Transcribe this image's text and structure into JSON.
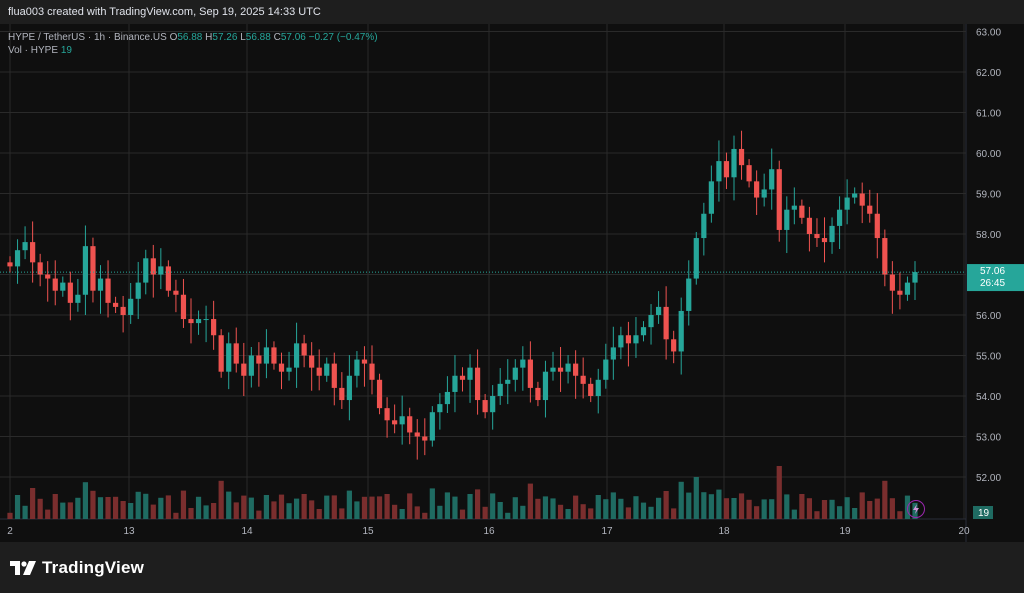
{
  "header": {
    "credit": "flua003 created with TradingView.com, Sep 19, 2025 14:33 UTC"
  },
  "legend": {
    "symbol": "HYPE / TetherUS · 1h · Binance.US",
    "o_label": "O",
    "o": "56.88",
    "h_label": "H",
    "h": "57.26",
    "l_label": "L",
    "l": "56.88",
    "c_label": "C",
    "c": "57.06",
    "change": "−0.27 (−0.47%)",
    "vol_label": "Vol · HYPE",
    "vol_value": "19"
  },
  "price_tag": {
    "price": "57.06",
    "countdown": "26:45"
  },
  "volume_tag": "19",
  "brand": {
    "name": "TradingView"
  },
  "colors": {
    "up": "#26a69a",
    "down": "#ef5350",
    "up_vol": "#1f6b62",
    "down_vol": "#7a2e2e",
    "bg": "#0f0f0f",
    "grid": "#2a2a2a",
    "text": "#d1d4dc"
  },
  "chart_data": {
    "type": "candlestick",
    "symbol": "HYPE / TetherUS",
    "interval": "1h",
    "y_ticks": [
      "63.00",
      "62.00",
      "61.00",
      "60.00",
      "59.00",
      "58.00",
      "57.00",
      "56.00",
      "55.00",
      "54.00",
      "53.00",
      "52.00"
    ],
    "x_ticks": [
      "2",
      "13",
      "14",
      "15",
      "16",
      "17",
      "18",
      "19",
      "20"
    ],
    "ylim": [
      51.0,
      63.3
    ],
    "current_price": 57.06,
    "candles_close": [
      57.2,
      57.6,
      57.8,
      57.3,
      57.0,
      56.9,
      56.6,
      56.8,
      56.3,
      56.5,
      57.7,
      56.6,
      56.9,
      56.3,
      56.2,
      56.0,
      56.4,
      56.8,
      57.4,
      57.0,
      57.2,
      56.6,
      56.5,
      55.9,
      55.8,
      55.9,
      55.9,
      55.5,
      54.6,
      55.3,
      54.8,
      54.5,
      55.0,
      54.8,
      55.2,
      54.8,
      54.6,
      54.7,
      55.3,
      55.0,
      54.7,
      54.5,
      54.8,
      54.2,
      53.9,
      54.5,
      54.9,
      54.8,
      54.4,
      53.7,
      53.4,
      53.3,
      53.5,
      53.1,
      53.0,
      52.9,
      53.6,
      53.8,
      54.1,
      54.5,
      54.4,
      54.7,
      53.9,
      53.6,
      54.0,
      54.3,
      54.4,
      54.7,
      54.9,
      54.2,
      53.9,
      54.6,
      54.7,
      54.6,
      54.8,
      54.5,
      54.3,
      54.0,
      54.4,
      54.9,
      55.2,
      55.5,
      55.3,
      55.5,
      55.7,
      56.0,
      56.2,
      55.4,
      55.1,
      56.1,
      56.9,
      57.9,
      58.5,
      59.3,
      59.8,
      59.4,
      60.1,
      59.7,
      59.3,
      58.9,
      59.1,
      59.6,
      58.1,
      58.6,
      58.7,
      58.4,
      58.0,
      57.9,
      57.8,
      58.2,
      58.6,
      58.9,
      59.0,
      58.7,
      58.5,
      57.9,
      57.0,
      56.6,
      56.5,
      56.8,
      57.06
    ]
  }
}
